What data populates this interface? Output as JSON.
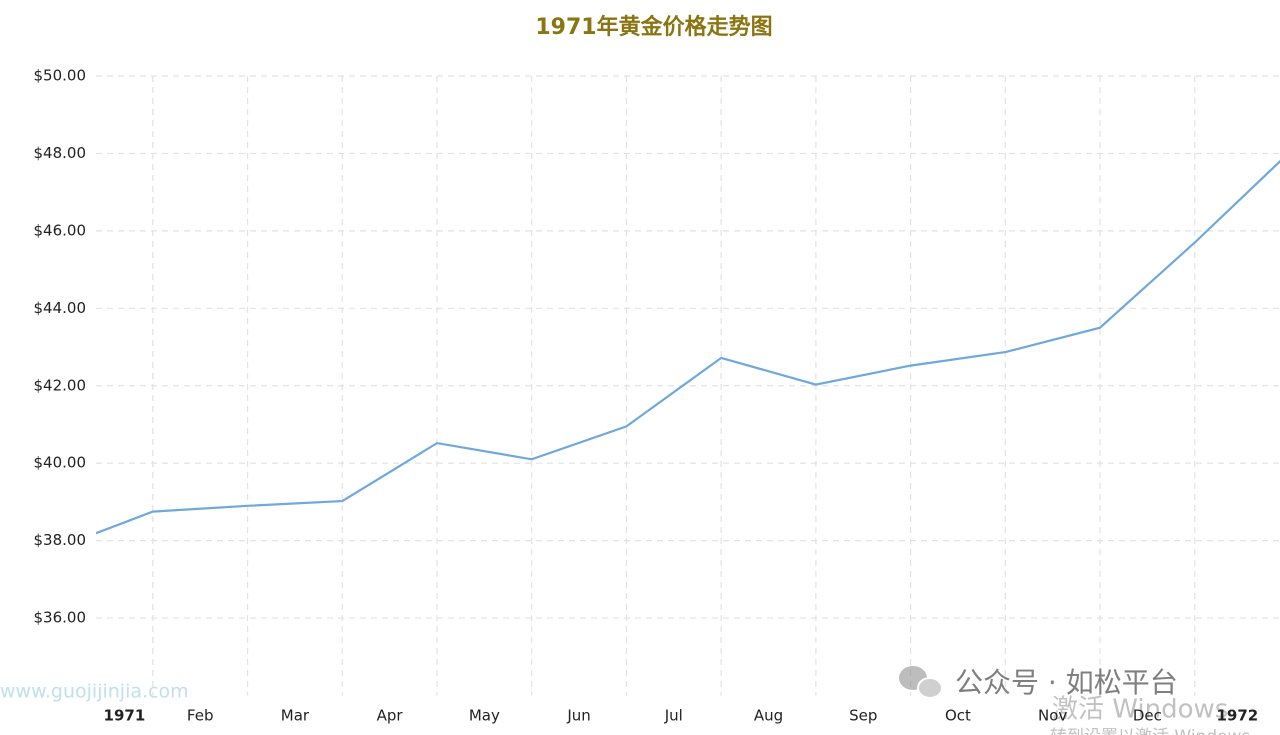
{
  "chart_data": {
    "type": "line",
    "title": "1971年黄金价格走势图",
    "x": [
      "1971-01",
      "1971-02",
      "1971-03",
      "1971-04",
      "1971-05",
      "1971-06",
      "1971-07",
      "1971-08",
      "1971-09",
      "1971-10",
      "1971-11",
      "1971-12",
      "1972-01",
      "1972-02"
    ],
    "series": [
      {
        "name": "Gold",
        "color": "#6fa8dc",
        "values": [
          37.82,
          38.75,
          38.9,
          39.02,
          40.52,
          40.1,
          40.95,
          42.72,
          42.03,
          42.52,
          42.87,
          43.5,
          45.7,
          48.03
        ]
      }
    ],
    "xlim": [
      "1971-01-13",
      "1972-01-28"
    ],
    "xticks": [
      {
        "value": "1971-01",
        "label": "1971"
      },
      {
        "value": "1971-02",
        "label": "Feb"
      },
      {
        "value": "1971-03",
        "label": "Mar"
      },
      {
        "value": "1971-04",
        "label": "Apr"
      },
      {
        "value": "1971-05",
        "label": "May"
      },
      {
        "value": "1971-06",
        "label": "Jun"
      },
      {
        "value": "1971-07",
        "label": "Jul"
      },
      {
        "value": "1971-08",
        "label": "Aug"
      },
      {
        "value": "1971-09",
        "label": "Sep"
      },
      {
        "value": "1971-10",
        "label": "Oct"
      },
      {
        "value": "1971-11",
        "label": "Nov"
      },
      {
        "value": "1971-12",
        "label": "Dec"
      },
      {
        "value": "1972-01",
        "label": "1972"
      }
    ],
    "ylim": [
      34,
      50
    ],
    "yticks": [
      {
        "value": 36,
        "label": "$36.00"
      },
      {
        "value": 38,
        "label": "$38.00"
      },
      {
        "value": 40,
        "label": "$40.00"
      },
      {
        "value": 42,
        "label": "$42.00"
      },
      {
        "value": 44,
        "label": "$44.00"
      },
      {
        "value": 46,
        "label": "$46.00"
      },
      {
        "value": 48,
        "label": "$48.00"
      },
      {
        "value": 50,
        "label": "$50.00"
      }
    ],
    "grid": true,
    "annotations": [
      "www.guojijinjia.com",
      "公众号 · 如松平台",
      "激活 Windows",
      "转到设置以激活 Windows"
    ]
  }
}
